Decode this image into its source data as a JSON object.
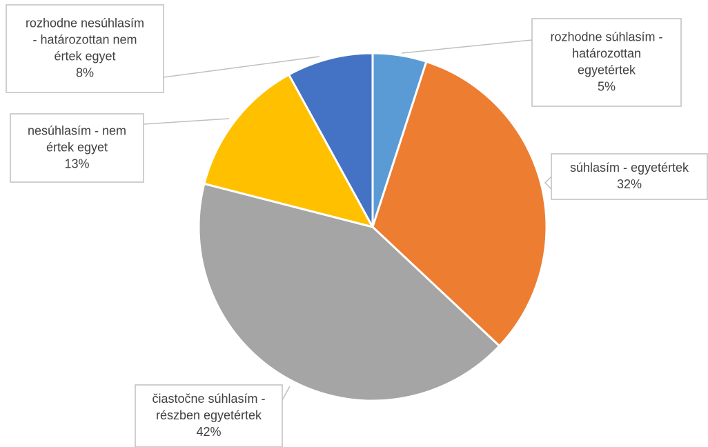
{
  "chart_data": {
    "type": "pie",
    "title": "",
    "slices": [
      {
        "lines": [
          "rozhodne súhlasím -",
          "határozottan",
          "egyetértek"
        ],
        "pct_label": "5%",
        "value": 5,
        "color": "#5b9bd5"
      },
      {
        "lines": [
          "súhlasím - egyetértek"
        ],
        "pct_label": "32%",
        "value": 32,
        "color": "#ed7d31"
      },
      {
        "lines": [
          "čiastočne súhlasím -",
          "részben egyetértek"
        ],
        "pct_label": "42%",
        "value": 42,
        "color": "#a5a5a5"
      },
      {
        "lines": [
          "nesúhlasím - nem",
          "értek egyet"
        ],
        "pct_label": "13%",
        "value": 13,
        "color": "#ffc000"
      },
      {
        "lines": [
          "rozhodne nesúhlasím",
          "- határozottan nem",
          "értek egyet"
        ],
        "pct_label": "8%",
        "value": 8,
        "color": "#4472c4"
      }
    ]
  }
}
